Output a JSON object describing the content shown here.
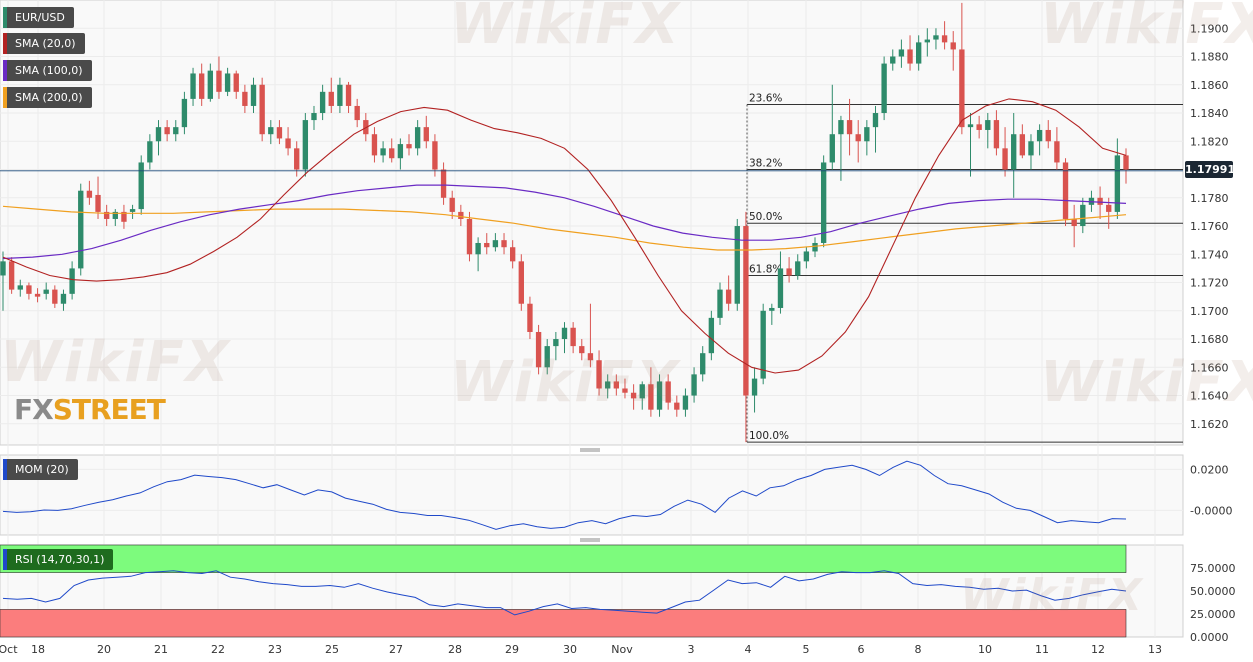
{
  "symbol": "EUR/USD",
  "current_price_label": "1.17991",
  "logo": {
    "part1": "FX",
    "part2": "STREET"
  },
  "watermark": "WikiFX",
  "legends": {
    "symbol": "EUR/USD",
    "sma20": "SMA (20,0)",
    "sma100": "SMA (100,0)",
    "sma200": "SMA (200,0)",
    "mom": "MOM (20)",
    "rsi": "RSI (14,70,30,1)"
  },
  "colors": {
    "up": "#2e8b6b",
    "down": "#d9534f",
    "sma20": "#b22222",
    "sma100": "#6a2bc4",
    "sma200": "#f0a020",
    "mom": "#1f49c9",
    "rsi": "#1f49c9",
    "rsi_overbought": "#7dfb7d",
    "rsi_oversold": "#fb7d7d",
    "fib": "#333333"
  },
  "chart_data": {
    "type": "candlestick",
    "price_axis": {
      "ylim": [
        1.1605,
        1.192
      ],
      "ticks": [
        "1.1900",
        "1.1880",
        "1.1860",
        "1.1840",
        "1.1820",
        "1.1800",
        "1.1780",
        "1.1760",
        "1.1740",
        "1.1720",
        "1.1700",
        "1.1680",
        "1.1660",
        "1.1640",
        "1.1620"
      ]
    },
    "x_ticks": [
      "Oct",
      "18",
      "20",
      "21",
      "22",
      "23",
      "25",
      "27",
      "28",
      "29",
      "30",
      "Nov",
      "3",
      "4",
      "5",
      "6",
      "8",
      "10",
      "11",
      "12",
      "13"
    ],
    "current_price": 1.17991,
    "fibonacci": [
      {
        "label": "23.6%",
        "value": 1.1846
      },
      {
        "label": "38.2%",
        "value": 1.18
      },
      {
        "label": "50.0%",
        "value": 1.1762
      },
      {
        "label": "61.8%",
        "value": 1.1725
      },
      {
        "label": "100.0%",
        "value": 1.1607
      }
    ],
    "candles": [
      [
        1.1725,
        1.1742,
        1.17,
        1.1735
      ],
      [
        1.1735,
        1.1738,
        1.1712,
        1.1715
      ],
      [
        1.1715,
        1.1722,
        1.171,
        1.1718
      ],
      [
        1.1718,
        1.172,
        1.1708,
        1.1712
      ],
      [
        1.1712,
        1.1716,
        1.1706,
        1.171
      ],
      [
        1.1712,
        1.172,
        1.1708,
        1.1715
      ],
      [
        1.1715,
        1.1718,
        1.1702,
        1.1705
      ],
      [
        1.1705,
        1.1715,
        1.17,
        1.1712
      ],
      [
        1.1712,
        1.1735,
        1.1708,
        1.173
      ],
      [
        1.173,
        1.179,
        1.1725,
        1.1785
      ],
      [
        1.1785,
        1.1792,
        1.1775,
        1.178
      ],
      [
        1.1782,
        1.1795,
        1.1765,
        1.177
      ],
      [
        1.177,
        1.1775,
        1.176,
        1.1765
      ],
      [
        1.1765,
        1.1772,
        1.176,
        1.177
      ],
      [
        1.177,
        1.1775,
        1.1758,
        1.1763
      ],
      [
        1.177,
        1.1775,
        1.1765,
        1.1772
      ],
      [
        1.1772,
        1.181,
        1.1768,
        1.1805
      ],
      [
        1.1805,
        1.1825,
        1.18,
        1.182
      ],
      [
        1.182,
        1.1835,
        1.181,
        1.183
      ],
      [
        1.183,
        1.1835,
        1.182,
        1.1825
      ],
      [
        1.1825,
        1.1835,
        1.182,
        1.183
      ],
      [
        1.183,
        1.1855,
        1.1825,
        1.185
      ],
      [
        1.185,
        1.1872,
        1.1845,
        1.1868
      ],
      [
        1.1868,
        1.1875,
        1.1845,
        1.185
      ],
      [
        1.185,
        1.1875,
        1.1848,
        1.187
      ],
      [
        1.187,
        1.188,
        1.185,
        1.1855
      ],
      [
        1.1855,
        1.1872,
        1.1852,
        1.1868
      ],
      [
        1.1868,
        1.187,
        1.185,
        1.1855
      ],
      [
        1.1855,
        1.186,
        1.184,
        1.1845
      ],
      [
        1.1845,
        1.1865,
        1.184,
        1.186
      ],
      [
        1.186,
        1.1865,
        1.182,
        1.1825
      ],
      [
        1.1825,
        1.1835,
        1.1818,
        1.183
      ],
      [
        1.183,
        1.1835,
        1.1818,
        1.1822
      ],
      [
        1.1822,
        1.183,
        1.181,
        1.1815
      ],
      [
        1.1815,
        1.182,
        1.1795,
        1.18
      ],
      [
        1.18,
        1.184,
        1.1795,
        1.1835
      ],
      [
        1.1835,
        1.1845,
        1.1828,
        1.184
      ],
      [
        1.184,
        1.186,
        1.1835,
        1.1855
      ],
      [
        1.1855,
        1.1865,
        1.184,
        1.1845
      ],
      [
        1.1845,
        1.1865,
        1.184,
        1.186
      ],
      [
        1.186,
        1.1862,
        1.184,
        1.1845
      ],
      [
        1.1845,
        1.185,
        1.183,
        1.1835
      ],
      [
        1.1835,
        1.184,
        1.182,
        1.1825
      ],
      [
        1.1825,
        1.183,
        1.1805,
        1.181
      ],
      [
        1.181,
        1.182,
        1.1805,
        1.1815
      ],
      [
        1.1815,
        1.1822,
        1.1805,
        1.1808
      ],
      [
        1.1808,
        1.1822,
        1.18,
        1.1818
      ],
      [
        1.1818,
        1.1825,
        1.181,
        1.1815
      ],
      [
        1.1815,
        1.1835,
        1.181,
        1.183
      ],
      [
        1.183,
        1.1838,
        1.1815,
        1.182
      ],
      [
        1.182,
        1.1825,
        1.1795,
        1.18
      ],
      [
        1.18,
        1.1805,
        1.1775,
        1.178
      ],
      [
        1.178,
        1.1785,
        1.1765,
        1.177
      ],
      [
        1.177,
        1.1775,
        1.176,
        1.1765
      ],
      [
        1.1765,
        1.177,
        1.1735,
        1.174
      ],
      [
        1.174,
        1.1752,
        1.1728,
        1.1748
      ],
      [
        1.1748,
        1.1755,
        1.174,
        1.1745
      ],
      [
        1.1745,
        1.1755,
        1.1742,
        1.175
      ],
      [
        1.175,
        1.1755,
        1.174,
        1.1745
      ],
      [
        1.1745,
        1.175,
        1.173,
        1.1735
      ],
      [
        1.1735,
        1.174,
        1.17,
        1.1705
      ],
      [
        1.1705,
        1.171,
        1.168,
        1.1685
      ],
      [
        1.1685,
        1.169,
        1.1655,
        1.166
      ],
      [
        1.166,
        1.168,
        1.1655,
        1.1675
      ],
      [
        1.1675,
        1.1685,
        1.1665,
        1.168
      ],
      [
        1.168,
        1.1692,
        1.167,
        1.1688
      ],
      [
        1.1688,
        1.1692,
        1.167,
        1.1675
      ],
      [
        1.1675,
        1.168,
        1.1665,
        1.167
      ],
      [
        1.167,
        1.1705,
        1.166,
        1.1665
      ],
      [
        1.1665,
        1.1672,
        1.164,
        1.1645
      ],
      [
        1.1645,
        1.1655,
        1.1638,
        1.165
      ],
      [
        1.165,
        1.1655,
        1.164,
        1.1645
      ],
      [
        1.1645,
        1.1652,
        1.1638,
        1.1642
      ],
      [
        1.1642,
        1.1648,
        1.163,
        1.1638
      ],
      [
        1.1638,
        1.165,
        1.163,
        1.1648
      ],
      [
        1.1648,
        1.166,
        1.1625,
        1.163
      ],
      [
        1.163,
        1.1655,
        1.1625,
        1.165
      ],
      [
        1.165,
        1.1655,
        1.163,
        1.1635
      ],
      [
        1.1635,
        1.164,
        1.1625,
        1.163
      ],
      [
        1.163,
        1.1645,
        1.1625,
        1.164
      ],
      [
        1.164,
        1.166,
        1.1635,
        1.1655
      ],
      [
        1.1655,
        1.1675,
        1.165,
        1.167
      ],
      [
        1.167,
        1.17,
        1.1665,
        1.1695
      ],
      [
        1.1695,
        1.172,
        1.169,
        1.1715
      ],
      [
        1.1715,
        1.1725,
        1.17,
        1.1705
      ],
      [
        1.1705,
        1.1765,
        1.17,
        1.176
      ],
      [
        1.176,
        1.177,
        1.1607,
        1.164
      ],
      [
        1.164,
        1.166,
        1.1628,
        1.1652
      ],
      [
        1.1652,
        1.1705,
        1.1648,
        1.17
      ],
      [
        1.17,
        1.1705,
        1.169,
        1.1702
      ],
      [
        1.1702,
        1.1742,
        1.1698,
        1.173
      ],
      [
        1.173,
        1.1738,
        1.172,
        1.1725
      ],
      [
        1.1725,
        1.174,
        1.1722,
        1.1735
      ],
      [
        1.1735,
        1.1745,
        1.173,
        1.1742
      ],
      [
        1.1742,
        1.1752,
        1.1738,
        1.1748
      ],
      [
        1.1748,
        1.181,
        1.1745,
        1.1805
      ],
      [
        1.1805,
        1.186,
        1.18,
        1.1825
      ],
      [
        1.1825,
        1.1838,
        1.1792,
        1.1835
      ],
      [
        1.1835,
        1.185,
        1.181,
        1.1825
      ],
      [
        1.1825,
        1.1835,
        1.1805,
        1.182
      ],
      [
        1.182,
        1.1835,
        1.181,
        1.183
      ],
      [
        1.183,
        1.1845,
        1.1812,
        1.184
      ],
      [
        1.184,
        1.188,
        1.1835,
        1.1875
      ],
      [
        1.1875,
        1.1885,
        1.187,
        1.188
      ],
      [
        1.188,
        1.1892,
        1.1872,
        1.1885
      ],
      [
        1.1885,
        1.1895,
        1.187,
        1.1875
      ],
      [
        1.1875,
        1.1895,
        1.187,
        1.189
      ],
      [
        1.189,
        1.19,
        1.188,
        1.1892
      ],
      [
        1.1892,
        1.19,
        1.1885,
        1.1895
      ],
      [
        1.1895,
        1.1905,
        1.1885,
        1.189
      ],
      [
        1.189,
        1.1898,
        1.187,
        1.1885
      ],
      [
        1.1885,
        1.1918,
        1.1825,
        1.183
      ],
      [
        1.183,
        1.184,
        1.1795,
        1.1832
      ],
      [
        1.1832,
        1.1838,
        1.1822,
        1.1828
      ],
      [
        1.1828,
        1.184,
        1.1815,
        1.1835
      ],
      [
        1.1835,
        1.1842,
        1.181,
        1.1815
      ],
      [
        1.1815,
        1.183,
        1.1795,
        1.18
      ],
      [
        1.18,
        1.184,
        1.178,
        1.1825
      ],
      [
        1.1825,
        1.1832,
        1.1808,
        1.181
      ],
      [
        1.181,
        1.1825,
        1.18,
        1.182
      ],
      [
        1.182,
        1.1832,
        1.181,
        1.1828
      ],
      [
        1.1828,
        1.1835,
        1.1815,
        1.182
      ],
      [
        1.182,
        1.183,
        1.18,
        1.1805
      ],
      [
        1.1805,
        1.1808,
        1.176,
        1.1765
      ],
      [
        1.1765,
        1.1775,
        1.1745,
        1.176
      ],
      [
        1.176,
        1.178,
        1.1755,
        1.1775
      ],
      [
        1.1775,
        1.1785,
        1.177,
        1.178
      ],
      [
        1.178,
        1.1788,
        1.1765,
        1.1775
      ],
      [
        1.1775,
        1.178,
        1.1758,
        1.177
      ],
      [
        1.177,
        1.1822,
        1.1765,
        1.181
      ],
      [
        1.181,
        1.1815,
        1.179,
        1.18
      ]
    ],
    "sma20": [
      1.1738,
      1.1731,
      1.1725,
      1.1722,
      1.1721,
      1.1722,
      1.1724,
      1.1727,
      1.1733,
      1.1742,
      1.1752,
      1.1765,
      1.1782,
      1.1798,
      1.1812,
      1.1825,
      1.1834,
      1.1841,
      1.1844,
      1.1842,
      1.1835,
      1.1829,
      1.1826,
      1.1822,
      1.1815,
      1.18,
      1.1778,
      1.1752,
      1.1725,
      1.17,
      1.1684,
      1.167,
      1.166,
      1.1656,
      1.1658,
      1.1668,
      1.1685,
      1.171,
      1.1745,
      1.178,
      1.181,
      1.1835,
      1.1845,
      1.185,
      1.1848,
      1.1842,
      1.183,
      1.1815,
      1.181
    ],
    "sma100": [
      1.1737,
      1.1738,
      1.174,
      1.1744,
      1.175,
      1.1757,
      1.1763,
      1.1768,
      1.1772,
      1.1775,
      1.1778,
      1.1782,
      1.1785,
      1.1787,
      1.1789,
      1.1789,
      1.1788,
      1.1787,
      1.1784,
      1.178,
      1.1774,
      1.1767,
      1.176,
      1.1755,
      1.1752,
      1.175,
      1.175,
      1.1752,
      1.1756,
      1.1762,
      1.1767,
      1.1772,
      1.1776,
      1.1778,
      1.1779,
      1.1779,
      1.1778,
      1.1777,
      1.1776
    ],
    "sma200": [
      1.1774,
      1.1772,
      1.177,
      1.1769,
      1.1769,
      1.1769,
      1.177,
      1.1771,
      1.1772,
      1.1772,
      1.1772,
      1.1771,
      1.177,
      1.1768,
      1.1765,
      1.1762,
      1.1758,
      1.1755,
      1.1752,
      1.1748,
      1.1745,
      1.1743,
      1.1743,
      1.1744,
      1.1746,
      1.1749,
      1.1752,
      1.1755,
      1.1758,
      1.176,
      1.1762,
      1.1764,
      1.1766,
      1.1768
    ],
    "mom": {
      "ylim": [
        -0.012,
        0.027
      ],
      "ticks": [
        "0.0200",
        "-0.0000"
      ],
      "values": [
        -0.0005,
        -0.001,
        -0.0007,
        0.0002,
        0.0,
        0.0008,
        0.0025,
        0.004,
        0.0052,
        0.007,
        0.0085,
        0.0115,
        0.014,
        0.015,
        0.0172,
        0.0165,
        0.016,
        0.015,
        0.013,
        0.011,
        0.0125,
        0.01,
        0.0075,
        0.01,
        0.009,
        0.006,
        0.0045,
        0.003,
        0.0005,
        -0.001,
        -0.0015,
        -0.0025,
        -0.0025,
        -0.0035,
        -0.0048,
        -0.007,
        -0.0092,
        -0.0075,
        -0.0065,
        -0.008,
        -0.0088,
        -0.0082,
        -0.006,
        -0.005,
        -0.0065,
        -0.004,
        -0.0025,
        -0.003,
        -0.002,
        0.002,
        0.005,
        0.003,
        -0.001,
        0.006,
        0.0095,
        0.007,
        0.011,
        0.012,
        0.015,
        0.017,
        0.02,
        0.021,
        0.022,
        0.02,
        0.017,
        0.021,
        0.024,
        0.022,
        0.017,
        0.013,
        0.012,
        0.01,
        0.008,
        0.004,
        0.001,
        0.0,
        -0.003,
        -0.006,
        -0.005,
        -0.0055,
        -0.006,
        -0.004,
        -0.0042
      ]
    },
    "rsi": {
      "ylim": [
        0,
        100
      ],
      "overbought": 70,
      "oversold": 30,
      "ticks": [
        "75.0000",
        "50.0000",
        "25.0000",
        "0.0000"
      ],
      "values": [
        42,
        41,
        42,
        38,
        42,
        56,
        62,
        64,
        65,
        66,
        70,
        71,
        72,
        70,
        69,
        72,
        65,
        63,
        60,
        58,
        57,
        55,
        55,
        56,
        54,
        58,
        53,
        49,
        46,
        43,
        35,
        33,
        36,
        34,
        32,
        32,
        24,
        28,
        33,
        36,
        31,
        32,
        30,
        29,
        28,
        27,
        26,
        32,
        38,
        40,
        51,
        62,
        58,
        59,
        54,
        66,
        61,
        63,
        68,
        71,
        70,
        70,
        72,
        69,
        58,
        56,
        57,
        55,
        54,
        52,
        53,
        50,
        51,
        45,
        40,
        42,
        46,
        49,
        52,
        50
      ]
    }
  }
}
